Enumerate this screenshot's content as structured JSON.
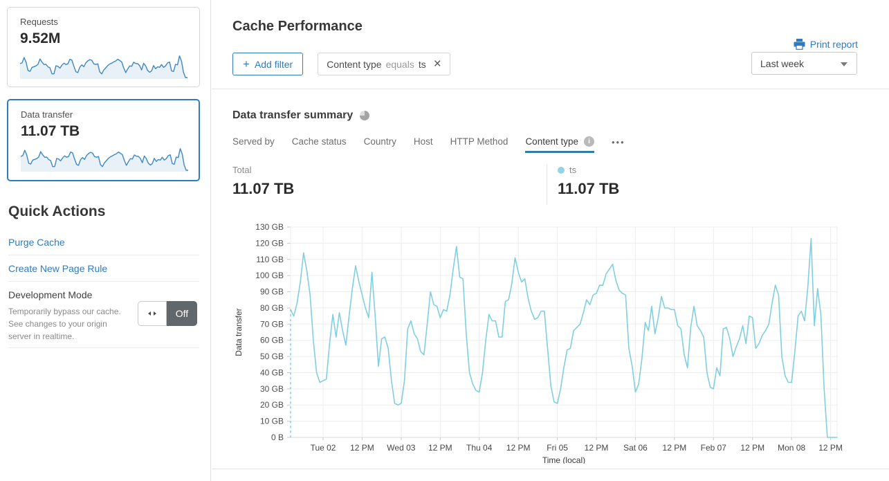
{
  "sidebar": {
    "cards": [
      {
        "label": "Requests",
        "value": "9.52M",
        "selected": false
      },
      {
        "label": "Data transfer",
        "value": "11.07 TB",
        "selected": true
      }
    ],
    "quick_actions": {
      "title": "Quick Actions",
      "links": [
        "Purge Cache",
        "Create New Page Rule"
      ],
      "dev_mode": {
        "title": "Development Mode",
        "description": "Temporarily bypass our cache. See changes to your origin server in realtime.",
        "toggle_state": "Off"
      }
    }
  },
  "header": {
    "title": "Cache Performance",
    "print_label": "Print report",
    "add_filter_label": "Add filter",
    "filter_chip": {
      "field": "Content type",
      "operator": "equals",
      "value": "ts"
    },
    "time_range": "Last week"
  },
  "summary": {
    "title": "Data transfer summary",
    "tabs": [
      {
        "label": "Served by",
        "active": false
      },
      {
        "label": "Cache status",
        "active": false
      },
      {
        "label": "Country",
        "active": false
      },
      {
        "label": "Host",
        "active": false
      },
      {
        "label": "HTTP Method",
        "active": false
      },
      {
        "label": "Content type",
        "active": true,
        "has_info": true
      }
    ],
    "total": {
      "label": "Total",
      "value": "11.07 TB"
    },
    "series_stat": {
      "label": "ts",
      "value": "11.07 TB",
      "dot_color": "#92d4e4"
    }
  },
  "icons": {
    "plus": "+",
    "close": "×",
    "info": "i",
    "more": "•••"
  },
  "colors": {
    "accent": "#2f7bbf",
    "chart_line": "#7fcfe0",
    "legend_dot": "#92d4e4",
    "sparkline": "#3e87c4",
    "sparkline_fill": "#e9f1f8",
    "tab_underline": "#337ca0",
    "toggle_off": "#62676b",
    "grid": "#ededed"
  },
  "chart_data": {
    "type": "line",
    "title": "Data transfer summary",
    "xlabel": "Time (local)",
    "ylabel": "Data transfer",
    "unit": "GB",
    "ylim": [
      0,
      130
    ],
    "grid": true,
    "x_start": "Mon Feb 01 14:00",
    "x_step_hours": 1,
    "x_tick_hours": [
      10,
      22,
      34,
      46,
      58,
      70,
      82,
      94,
      106,
      118,
      130,
      142,
      154,
      166
    ],
    "x_tick_labels": [
      "Tue 02",
      "12 PM",
      "Wed 03",
      "12 PM",
      "Thu 04",
      "12 PM",
      "Fri 05",
      "12 PM",
      "Sat 06",
      "12 PM",
      "Feb 07",
      "12 PM",
      "Mon 08",
      "12 PM"
    ],
    "y_ticks": [
      "0 B",
      "10 GB",
      "20 GB",
      "30 GB",
      "40 GB",
      "50 GB",
      "60 GB",
      "70 GB",
      "80 GB",
      "90 GB",
      "100 GB",
      "110 GB",
      "120 GB",
      "130 GB"
    ],
    "series": [
      {
        "name": "ts",
        "color": "#7fcfe0",
        "values": [
          79,
          75,
          83,
          96,
          114,
          103,
          88,
          60,
          40,
          34,
          35,
          36,
          58,
          76,
          62,
          77,
          66,
          57,
          75,
          92,
          106,
          96,
          88,
          80,
          74,
          102,
          75,
          44,
          61,
          62,
          55,
          35,
          21,
          20,
          21,
          35,
          67,
          72,
          64,
          61,
          53,
          51,
          70,
          90,
          82,
          81,
          74,
          79,
          78,
          88,
          104,
          118,
          99,
          98,
          64,
          40,
          33,
          29,
          28,
          40,
          60,
          76,
          72,
          72,
          62,
          62,
          84,
          85,
          95,
          111,
          102,
          96,
          98,
          86,
          78,
          73,
          74,
          78,
          78,
          55,
          32,
          22,
          21,
          30,
          43,
          54,
          55,
          66,
          68,
          70,
          77,
          85,
          82,
          88,
          89,
          94,
          94,
          101,
          104,
          107,
          97,
          91,
          89,
          88,
          55,
          44,
          28,
          33,
          49,
          71,
          66,
          81,
          64,
          74,
          87,
          80,
          80,
          79,
          79,
          69,
          67,
          51,
          43,
          68,
          81,
          69,
          66,
          62,
          40,
          31,
          30,
          43,
          38,
          67,
          68,
          61,
          50,
          56,
          61,
          69,
          58,
          75,
          74,
          55,
          58,
          63,
          66,
          70,
          83,
          94,
          88,
          50,
          38,
          34,
          34,
          53,
          75,
          78,
          72,
          93,
          123,
          69,
          92,
          76,
          30,
          0,
          0,
          0,
          0
        ]
      }
    ]
  }
}
